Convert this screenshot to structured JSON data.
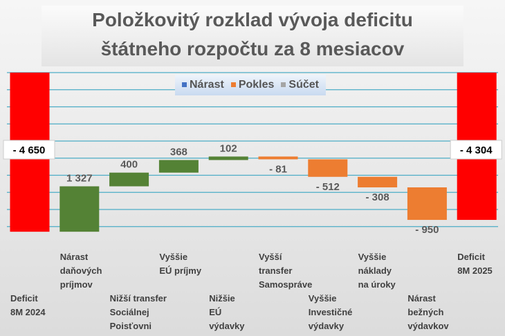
{
  "chart_data": {
    "type": "waterfall",
    "title": "Položkovitý rozklad vývoja deficitu štátneho rozpočtu za 8 mesiacov",
    "title_lines": [
      "Položkovitý rozklad vývoja deficitu",
      "štátneho rozpočtu za 8 mesiacov"
    ],
    "legend": [
      {
        "name": "Nárast",
        "color": "#4472c4"
      },
      {
        "name": "Pokles",
        "color": "#ed7d31"
      },
      {
        "name": "Súčet",
        "color": "#a5a5a5"
      }
    ],
    "legend_placement": "top",
    "categories": [
      "Deficit 8M 2024",
      "Nárast daňových príjmov",
      "Nižší transfer Sociálnej Poisťovni",
      "Vyššie EÚ príjmy",
      "Nižšie EÚ výdavky",
      "Vyšší transfer Samospráve",
      "Vyššie Investičné výdavky",
      "Vyššie náklady na úroky",
      "Nárast bežných výdavkov",
      "Deficit 8M 2025"
    ],
    "category_lines": [
      [
        "Deficit",
        "8M 2024"
      ],
      [
        "Nárast",
        "daňových",
        "príjmov"
      ],
      [
        "Nižší transfer",
        "Sociálnej",
        "Poisťovni"
      ],
      [
        "Vyššie",
        "EÚ príjmy"
      ],
      [
        "Nižšie",
        "EÚ",
        "výdavky"
      ],
      [
        "Vyšší",
        "transfer",
        "Samospráve"
      ],
      [
        "Vyššie",
        "Investičné",
        "výdavky"
      ],
      [
        "Vyššie",
        "náklady",
        "na úroky"
      ],
      [
        "Nárast",
        "bežných",
        "výdavkov"
      ],
      [
        "Deficit",
        "8M 2025"
      ]
    ],
    "values": [
      -4650,
      1327,
      400,
      368,
      102,
      -81,
      -512,
      -308,
      -950,
      -4304
    ],
    "kinds": [
      "total",
      "up",
      "up",
      "up",
      "up",
      "down",
      "down",
      "down",
      "down",
      "total"
    ],
    "data_labels": [
      "- 4 650",
      "1 327",
      "400",
      "368",
      "102",
      "- 81",
      "- 512",
      "- 308",
      "- 950",
      "- 4 304"
    ],
    "colors": {
      "total": "#ff0000",
      "up": "#548235",
      "down": "#ed7d31",
      "grid": "#4bacc6"
    },
    "ylim": [
      -5000,
      0
    ],
    "grid": true
  }
}
